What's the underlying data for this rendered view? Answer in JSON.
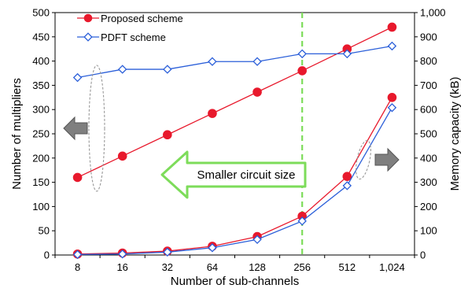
{
  "chart_data": {
    "type": "line",
    "xlabel": "Number of sub-channels",
    "ylabel_left": "Number of multipliers",
    "ylabel_right": "Memory capacity (kB)",
    "categories": [
      "8",
      "16",
      "32",
      "64",
      "128",
      "256",
      "512",
      "1,024"
    ],
    "ylim_left": [
      0,
      500
    ],
    "ylim_right": [
      0,
      1000
    ],
    "yticks_left": [
      "0",
      "50",
      "100",
      "150",
      "200",
      "250",
      "300",
      "350",
      "400",
      "450",
      "500"
    ],
    "yticks_right": [
      "0",
      "100",
      "200",
      "300",
      "400",
      "500",
      "600",
      "700",
      "800",
      "900",
      "1,000"
    ],
    "legend_position": "top-left",
    "series": [
      {
        "name": "Proposed scheme",
        "axis": "left",
        "color": "#e8192c",
        "marker": "circle",
        "values": [
          160,
          204,
          248,
          292,
          336,
          380,
          425,
          470
        ]
      },
      {
        "name": "PDFT scheme",
        "axis": "left",
        "color": "#2b5fd9",
        "marker": "diamond",
        "values": [
          366,
          383,
          383,
          399,
          399,
          415,
          415,
          431
        ]
      },
      {
        "name": "Proposed scheme",
        "axis": "right",
        "color": "#e8192c",
        "marker": "circle",
        "values": [
          4,
          8,
          16,
          36,
          76,
          160,
          324,
          650
        ]
      },
      {
        "name": "PDFT scheme",
        "axis": "right",
        "color": "#2b5fd9",
        "marker": "diamond",
        "values": [
          2,
          4,
          12,
          30,
          64,
          140,
          286,
          608
        ]
      }
    ],
    "annotation": {
      "text": "Smaller circuit size",
      "color": "#7ddc5a",
      "at_category": "256"
    },
    "colors": {
      "guide_line": "#7ddc5a",
      "side_arrows": "#7f7f7f",
      "ellipse": "#999999"
    }
  }
}
